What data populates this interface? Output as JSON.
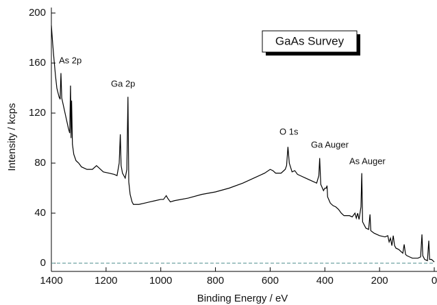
{
  "chart_data": {
    "type": "line",
    "title": "GaAs Survey",
    "x_label": "Binding Energy / eV",
    "y_label": "Intensity / kcps",
    "annotations": [
      "As 2p",
      "Ga 2p",
      "O 1s",
      "Ga Auger",
      "As Auger"
    ],
    "xlim": [
      1400,
      0
    ],
    "ylim": [
      0,
      200
    ],
    "xticks": [
      1400,
      1200,
      1000,
      800,
      600,
      400,
      200,
      0
    ],
    "yticks": [
      0,
      40,
      80,
      120,
      160,
      200
    ],
    "zero_line": true,
    "series": [
      {
        "color": "#000000",
        "x": [
          1400,
          1395,
          1390,
          1385,
          1380,
          1372,
          1368,
          1365,
          1362,
          1355,
          1345,
          1338,
          1333,
          1330,
          1328,
          1326,
          1323,
          1318,
          1310,
          1300,
          1290,
          1270,
          1250,
          1235,
          1225,
          1210,
          1190,
          1170,
          1160,
          1152,
          1148,
          1145,
          1140,
          1130,
          1124,
          1120,
          1117,
          1112,
          1105,
          1100,
          1080,
          1060,
          1040,
          1020,
          1000,
          990,
          980,
          975,
          965,
          950,
          900,
          850,
          800,
          750,
          700,
          650,
          620,
          600,
          590,
          580,
          560,
          545,
          540,
          535,
          530,
          520,
          510,
          500,
          490,
          470,
          450,
          430,
          422,
          419,
          415,
          405,
          400,
          395,
          392,
          390,
          380,
          370,
          360,
          350,
          340,
          330,
          310,
          300,
          290,
          285,
          280,
          275,
          268,
          265,
          262,
          250,
          240,
          235,
          232,
          220,
          200,
          180,
          170,
          165,
          160,
          155,
          150,
          145,
          140,
          130,
          115,
          110,
          105,
          100,
          90,
          80,
          70,
          60,
          50,
          45,
          42,
          35,
          25,
          20,
          17,
          10,
          5,
          0
        ],
        "values": [
          190,
          175,
          162,
          150,
          140,
          133,
          131,
          152,
          132,
          125,
          115,
          108,
          104,
          142,
          100,
          130,
          95,
          87,
          82,
          80,
          77,
          75,
          75,
          78,
          76,
          73,
          72,
          71,
          70,
          80,
          103,
          78,
          72,
          68,
          75,
          133,
          65,
          55,
          49,
          47,
          47,
          48,
          49,
          50,
          51,
          51,
          54,
          52,
          49,
          50,
          52,
          55,
          57,
          60,
          64,
          69,
          72,
          75,
          74,
          72,
          72,
          75,
          78,
          93,
          80,
          73,
          74,
          71,
          70,
          68,
          66,
          64,
          70,
          84,
          63,
          58,
          60,
          60,
          62,
          53,
          48,
          46,
          45,
          43,
          40,
          38,
          38,
          37,
          40,
          36,
          40,
          35,
          45,
          72,
          33,
          28,
          27,
          39,
          26,
          24,
          22,
          21,
          22,
          17,
          20,
          14,
          22,
          14,
          12,
          11,
          8,
          15,
          7,
          6,
          5,
          4,
          4,
          4,
          5,
          23,
          6,
          3,
          2,
          18,
          3,
          3,
          2,
          1
        ]
      }
    ]
  }
}
